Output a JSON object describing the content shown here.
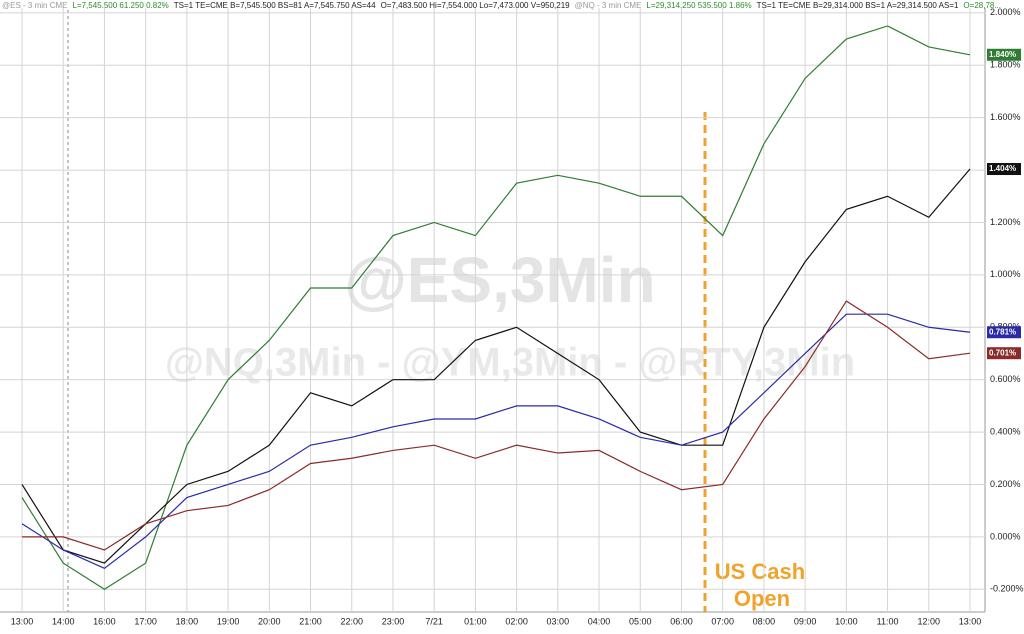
{
  "chart_data": {
    "type": "line",
    "header": [
      {
        "text": "@ES - 3 min CME",
        "color": "#999999"
      },
      {
        "text": "L=7,545.500 61.250 0.82%",
        "color": "#2e8b2e"
      },
      {
        "text": "TS=1 TE=CME B=7,545.500 BS=81 A=7,545.750 AS=44",
        "color": "#222222"
      },
      {
        "text": "O=7,483.500 Hi=7,554.000 Lo=7,473.000 V=950,219",
        "color": "#222222"
      },
      {
        "text": "@NQ - 3 min CME",
        "color": "#999999"
      },
      {
        "text": "L=29,314.250 535.500 1.86%",
        "color": "#2e8b2e"
      },
      {
        "text": "TS=1 TE=CME B=29,314.000 BS=1 A=29,314.500 AS=1",
        "color": "#222222"
      },
      {
        "text": "O=28,78...",
        "color": "#2e8b2e"
      }
    ],
    "watermark": "@ES,3Min",
    "watermark2": "@NQ,3Min - @YM,3Min - @RTY,3Min",
    "annotation": [
      "US Cash",
      "Open"
    ],
    "categories": [
      "13:00",
      "14:00",
      "16:00",
      "17:00",
      "18:00",
      "19:00",
      "20:00",
      "21:00",
      "22:00",
      "23:00",
      "7/21",
      "01:00",
      "02:00",
      "03:00",
      "04:00",
      "05:00",
      "06:00",
      "07:00",
      "08:00",
      "09:00",
      "10:00",
      "11:00",
      "12:00",
      "13:00"
    ],
    "series": [
      {
        "color": "#2e7d32",
        "values": [
          0.15,
          -0.1,
          -0.2,
          -0.1,
          0.35,
          0.6,
          0.75,
          0.95,
          0.95,
          1.15,
          1.2,
          1.15,
          1.35,
          1.38,
          1.35,
          1.3,
          1.3,
          1.15,
          1.5,
          1.75,
          1.9,
          1.95,
          1.87,
          1.84
        ],
        "end_label": {
          "value": 1.84,
          "label": "1.840%"
        }
      },
      {
        "color": "#111111",
        "values": [
          0.2,
          -0.05,
          -0.1,
          0.05,
          0.2,
          0.25,
          0.35,
          0.55,
          0.5,
          0.6,
          0.6,
          0.75,
          0.8,
          0.7,
          0.6,
          0.4,
          0.35,
          0.35,
          0.8,
          1.05,
          1.25,
          1.3,
          1.22,
          1.404
        ],
        "end_label": {
          "value": 1.404,
          "label": "1.404%"
        }
      },
      {
        "color": "#2a2aa8",
        "values": [
          0.05,
          -0.05,
          -0.12,
          0.0,
          0.15,
          0.2,
          0.25,
          0.35,
          0.38,
          0.42,
          0.45,
          0.45,
          0.5,
          0.5,
          0.45,
          0.38,
          0.35,
          0.4,
          0.55,
          0.7,
          0.85,
          0.85,
          0.8,
          0.781
        ],
        "end_label": {
          "value": 0.781,
          "label": "0.781%"
        }
      },
      {
        "color": "#8b2a2a",
        "values": [
          0.0,
          0.0,
          -0.05,
          0.05,
          0.1,
          0.12,
          0.18,
          0.28,
          0.3,
          0.33,
          0.35,
          0.3,
          0.35,
          0.32,
          0.33,
          0.25,
          0.18,
          0.2,
          0.45,
          0.65,
          0.9,
          0.8,
          0.68,
          0.701
        ],
        "end_label": {
          "value": 0.701,
          "label": "0.701%"
        }
      }
    ],
    "ylim": [
      -0.26,
      2.03
    ],
    "yticks": [
      {
        "value": -0.2,
        "label": "-0.200%"
      },
      {
        "value": 0,
        "label": "0.000%"
      },
      {
        "value": 0.2,
        "label": "0.200%"
      },
      {
        "value": 0.4,
        "label": "0.400%"
      },
      {
        "value": 0.6,
        "label": "0.600%"
      },
      {
        "value": 0.8,
        "label": "0.800%"
      },
      {
        "value": 1.0,
        "label": "1.000%"
      },
      {
        "value": 1.2,
        "label": "1.200%"
      },
      {
        "value": 1.4,
        "label": "1.400%"
      },
      {
        "value": 1.6,
        "label": "1.600%"
      },
      {
        "value": 1.8,
        "label": "1.800%"
      },
      {
        "value": 2.0,
        "label": "2.000%"
      }
    ],
    "grid": true
  }
}
